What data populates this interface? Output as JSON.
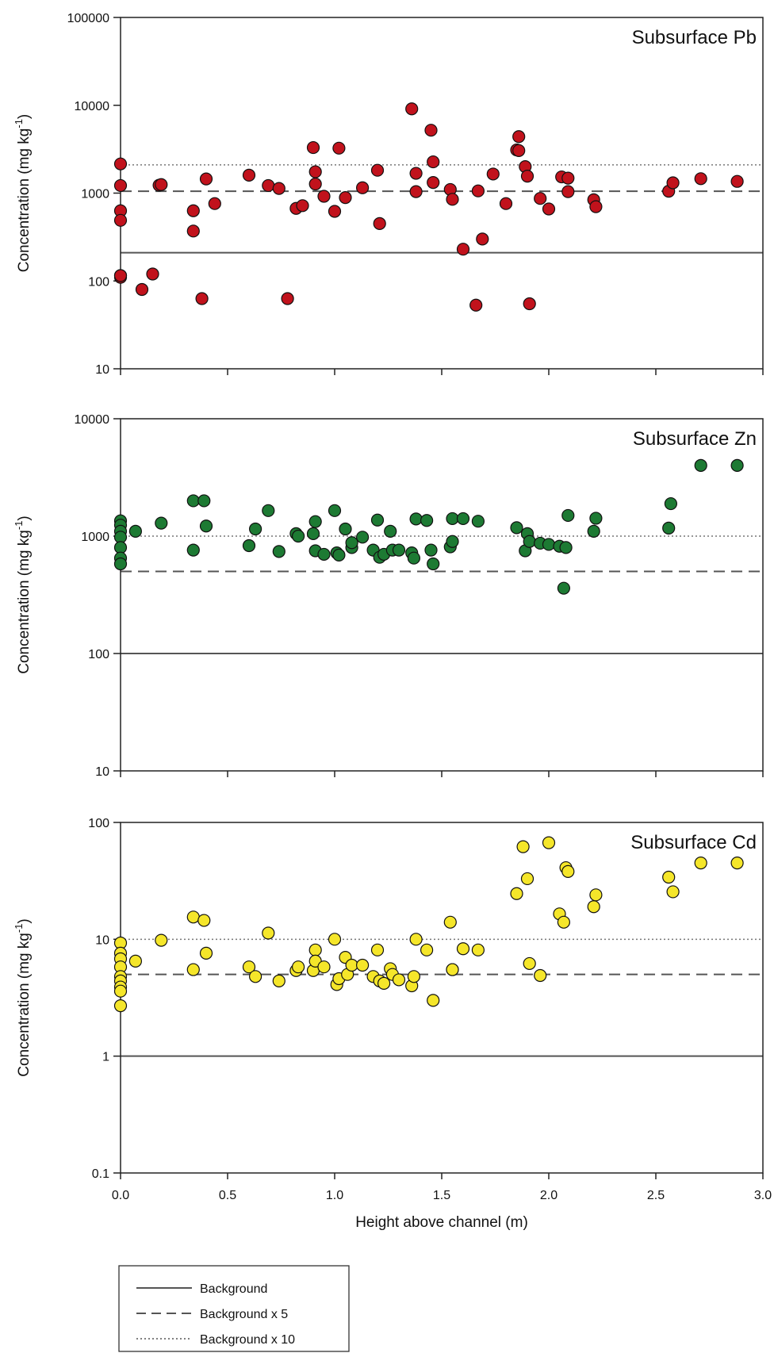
{
  "chart_data": [
    {
      "type": "scatter",
      "title": "Subsurface Pb",
      "ylabel_main": "Concentration (mg kg",
      "ylabel_sup": "-1",
      "ylabel_end": ")",
      "yscale": "log",
      "ylim": [
        10,
        100000
      ],
      "yticks": [
        "10",
        "100",
        "1000",
        "10000",
        "100000"
      ],
      "xlim": [
        0,
        3
      ],
      "marker_color": "#c1121c",
      "reference_lines": {
        "background": 210,
        "background_x5": 1050,
        "background_x10": 2100
      },
      "x": [
        0.0,
        0.0,
        0.0,
        0.0,
        0.0,
        0.0,
        0.0,
        0.1,
        0.15,
        0.18,
        0.19,
        0.34,
        0.34,
        0.38,
        0.4,
        0.44,
        0.6,
        0.69,
        0.74,
        0.78,
        0.82,
        0.85,
        0.9,
        0.91,
        0.91,
        0.95,
        1.0,
        1.02,
        1.05,
        1.13,
        1.2,
        1.21,
        1.36,
        1.38,
        1.38,
        1.45,
        1.46,
        1.46,
        1.54,
        1.55,
        1.6,
        1.66,
        1.67,
        1.69,
        1.74,
        1.8,
        1.85,
        1.86,
        1.86,
        1.89,
        1.9,
        1.91,
        1.96,
        2.0,
        2.06,
        2.09,
        2.09,
        2.21,
        2.22,
        2.56,
        2.58,
        2.71,
        2.88
      ],
      "y": [
        2150,
        1220,
        630,
        490,
        115,
        110,
        115,
        80,
        120,
        1230,
        1250,
        630,
        370,
        63,
        1450,
        760,
        1600,
        1220,
        1130,
        63,
        670,
        720,
        3300,
        1750,
        1270,
        920,
        620,
        3250,
        890,
        1150,
        1820,
        450,
        9100,
        1680,
        1040,
        5200,
        2270,
        1320,
        1100,
        850,
        230,
        53,
        1060,
        300,
        1650,
        760,
        3100,
        4400,
        3050,
        2000,
        1560,
        55,
        870,
        660,
        1530,
        1480,
        1040,
        840,
        700,
        1050,
        1310,
        1460,
        1360
      ]
    },
    {
      "type": "scatter",
      "title": "Subsurface Zn",
      "ylabel_main": "Concentration (mg kg",
      "ylabel_sup": "-1",
      "ylabel_end": ")",
      "yscale": "log",
      "ylim": [
        10,
        10000
      ],
      "yticks": [
        "10",
        "100",
        "1000",
        "10000"
      ],
      "xlim": [
        0,
        3
      ],
      "marker_color": "#1d7a33",
      "reference_lines": {
        "background": 100,
        "background_x5": 500,
        "background_x10": 1000
      },
      "x": [
        0.0,
        0.0,
        0.0,
        0.0,
        0.0,
        0.0,
        0.0,
        0.07,
        0.19,
        0.34,
        0.34,
        0.39,
        0.4,
        0.6,
        0.63,
        0.69,
        0.74,
        0.82,
        0.83,
        0.9,
        0.91,
        0.91,
        0.95,
        1.0,
        1.01,
        1.02,
        1.05,
        1.08,
        1.08,
        1.13,
        1.18,
        1.2,
        1.21,
        1.23,
        1.26,
        1.27,
        1.3,
        1.36,
        1.37,
        1.38,
        1.43,
        1.45,
        1.46,
        1.54,
        1.55,
        1.55,
        1.6,
        1.67,
        1.85,
        1.89,
        1.9,
        1.91,
        1.96,
        2.0,
        2.05,
        2.07,
        2.08,
        2.09,
        2.21,
        2.22,
        2.56,
        2.57,
        2.71,
        2.88
      ],
      "y": [
        1350,
        1240,
        1100,
        980,
        800,
        650,
        580,
        1100,
        1290,
        2000,
        760,
        2000,
        1220,
        830,
        1150,
        1650,
        740,
        1050,
        1000,
        1050,
        1330,
        750,
        700,
        1650,
        720,
        690,
        1150,
        800,
        880,
        980,
        760,
        1370,
        660,
        700,
        1100,
        760,
        760,
        720,
        650,
        1400,
        1360,
        760,
        580,
        810,
        900,
        1410,
        1410,
        1340,
        1180,
        750,
        1050,
        900,
        870,
        850,
        820,
        360,
        800,
        1500,
        1100,
        1420,
        1170,
        1890,
        4000,
        4000
      ]
    },
    {
      "type": "scatter",
      "title": "Subsurface Cd",
      "ylabel_main": "Concentration (mg kg",
      "ylabel_sup": "-1",
      "ylabel_end": ")",
      "yscale": "log",
      "ylim": [
        0.1,
        100
      ],
      "yticks": [
        "0.1",
        "1",
        "10",
        "100"
      ],
      "xlim": [
        0,
        3
      ],
      "xlabel": "Height above channel (m)",
      "xticks": [
        "0.0",
        "0.5",
        "1.0",
        "1.5",
        "2.0",
        "2.5",
        "3.0"
      ],
      "marker_color": "#f5e62a",
      "reference_lines": {
        "background": 1,
        "background_x5": 5,
        "background_x10": 10
      },
      "x": [
        0.0,
        0.0,
        0.0,
        0.0,
        0.0,
        0.0,
        0.0,
        0.0,
        0.0,
        0.07,
        0.19,
        0.34,
        0.34,
        0.39,
        0.4,
        0.6,
        0.63,
        0.69,
        0.74,
        0.82,
        0.83,
        0.9,
        0.91,
        0.91,
        0.95,
        1.0,
        1.01,
        1.02,
        1.05,
        1.06,
        1.08,
        1.13,
        1.18,
        1.2,
        1.21,
        1.23,
        1.26,
        1.27,
        1.3,
        1.36,
        1.37,
        1.38,
        1.43,
        1.46,
        1.54,
        1.55,
        1.55,
        1.6,
        1.67,
        1.85,
        1.88,
        1.9,
        1.91,
        1.96,
        2.0,
        2.05,
        2.07,
        2.08,
        2.09,
        2.21,
        2.22,
        2.56,
        2.58,
        2.71,
        2.88
      ],
      "y": [
        9.3,
        7.6,
        6.8,
        5.8,
        4.8,
        4.4,
        3.9,
        3.6,
        2.7,
        6.5,
        9.8,
        15.5,
        5.5,
        14.5,
        7.6,
        5.8,
        4.8,
        11.3,
        4.4,
        5.4,
        5.8,
        5.4,
        8.1,
        6.5,
        5.8,
        10.0,
        4.1,
        4.6,
        7.0,
        5.0,
        6.0,
        6.0,
        4.8,
        8.1,
        4.4,
        4.2,
        5.6,
        5.0,
        4.5,
        4.0,
        4.8,
        10.0,
        8.1,
        3.0,
        14.0,
        5.5,
        5.5,
        8.3,
        8.1,
        24.6,
        62.0,
        33.0,
        6.2,
        4.9,
        67.0,
        16.5,
        14.0,
        41.0,
        38.0,
        19.0,
        24.0,
        34.0,
        25.5,
        45.0,
        45.0
      ]
    }
  ],
  "legend": {
    "items": [
      {
        "label": "Background",
        "style": "solid"
      },
      {
        "label": "Background x 5",
        "style": "dashed"
      },
      {
        "label": "Background x 10",
        "style": "dotted"
      }
    ]
  }
}
